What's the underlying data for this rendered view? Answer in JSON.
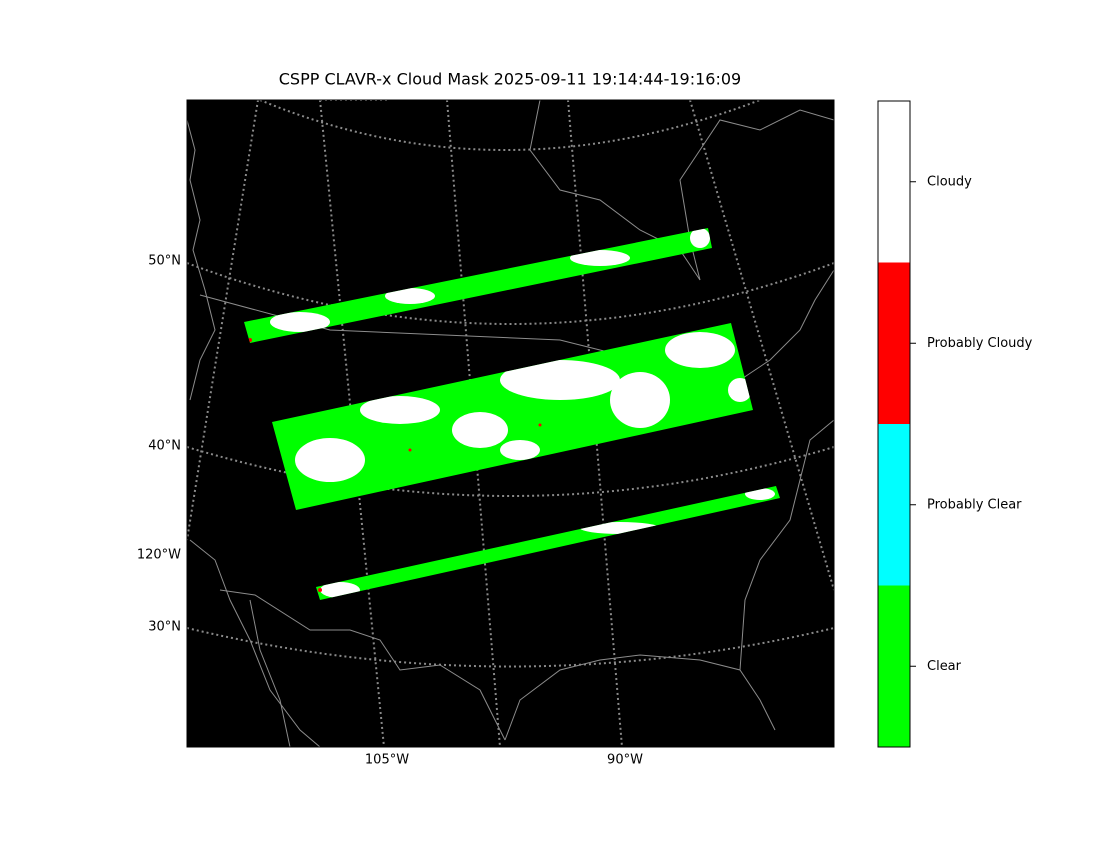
{
  "title": "CSPP CLAVR-x Cloud Mask 2025-09-11 19:14:44-19:16:09",
  "map": {
    "left_labels": [
      "50°N",
      "40°N",
      "120°W",
      "30°N"
    ],
    "bottom_labels": [
      "105°W",
      "90°W"
    ]
  },
  "colorbar": {
    "classes": [
      {
        "name": "Cloudy",
        "color": "#ffffff"
      },
      {
        "name": "Probably Cloudy",
        "color": "#ff0000"
      },
      {
        "name": "Probably Clear",
        "color": "#00ffff"
      },
      {
        "name": "Clear",
        "color": "#00ff00"
      }
    ]
  }
}
